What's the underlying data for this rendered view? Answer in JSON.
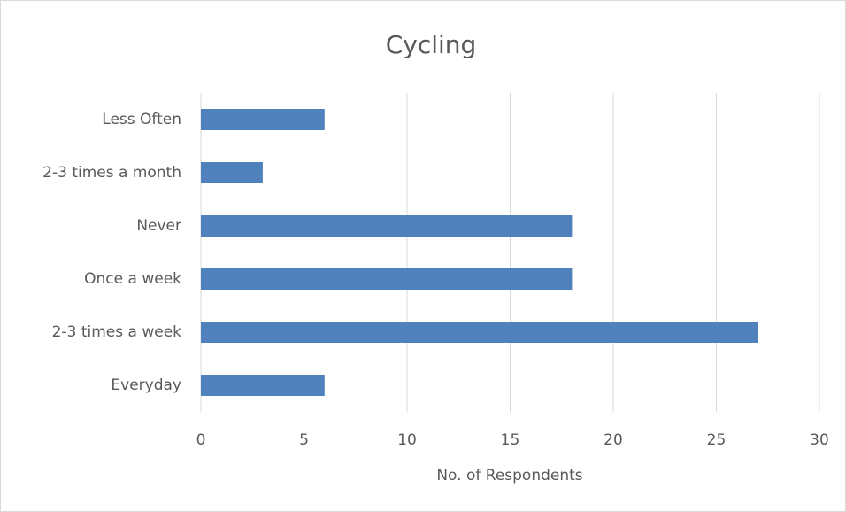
{
  "chart_data": {
    "type": "bar",
    "orientation": "horizontal",
    "title": "Cycling",
    "x_label": "No. of Respondents",
    "categories": [
      "Everyday",
      "2-3 times a week",
      "Once a week",
      "Never",
      "2-3 times a month",
      "Less Often"
    ],
    "values": [
      6,
      27,
      18,
      18,
      3,
      6
    ],
    "color": "#4f81bd",
    "xlim": [
      0,
      30
    ],
    "xticks": [
      0,
      5,
      10,
      15,
      20,
      25,
      30
    ],
    "grid": true
  }
}
